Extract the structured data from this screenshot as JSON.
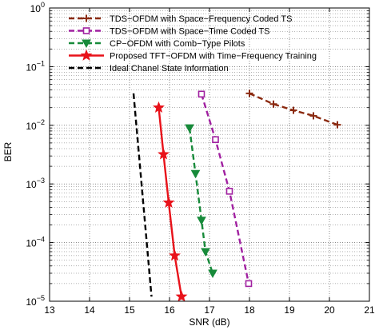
{
  "chart_data": {
    "type": "line",
    "xlabel": "SNR (dB)",
    "ylabel": "BER",
    "xlim": [
      13,
      21
    ],
    "ylim": [
      1e-05,
      1
    ],
    "yscale": "log",
    "grid": true,
    "legend_position": "top-right",
    "x_ticks": [
      {
        "value": 13,
        "label": "13"
      },
      {
        "value": 14,
        "label": "14"
      },
      {
        "value": 15,
        "label": "15"
      },
      {
        "value": 16,
        "label": "16"
      },
      {
        "value": 17,
        "label": "17"
      },
      {
        "value": 18,
        "label": "18"
      },
      {
        "value": 19,
        "label": "19"
      },
      {
        "value": 20,
        "label": "20"
      },
      {
        "value": 21,
        "label": "21"
      }
    ],
    "y_ticks": [
      {
        "value": 1,
        "base": "10",
        "exp": "0"
      },
      {
        "value": 0.1,
        "base": "10",
        "exp": "−1"
      },
      {
        "value": 0.01,
        "base": "10",
        "exp": "−2"
      },
      {
        "value": 0.001,
        "base": "10",
        "exp": "−3"
      },
      {
        "value": 0.0001,
        "base": "10",
        "exp": "−4"
      },
      {
        "value": 1e-05,
        "base": "10",
        "exp": "−5"
      }
    ],
    "series": [
      {
        "name": "TDS−OFDM with Space−Frequency Coded TS",
        "color": "#8b2a10",
        "dash": "7,4",
        "marker": "plus",
        "x": [
          18.0,
          18.6,
          19.1,
          19.6,
          20.2
        ],
        "y": [
          0.035,
          0.023,
          0.018,
          0.0145,
          0.0102
        ]
      },
      {
        "name": "TDS−OFDM with Space−Time Coded TS",
        "color": "#a020a0",
        "dash": "7,4",
        "marker": "square",
        "x": [
          16.8,
          17.15,
          17.5,
          17.98
        ],
        "y": [
          0.034,
          0.0057,
          0.00075,
          2e-05
        ]
      },
      {
        "name": "CP−OFDM with Comb−Type Pilots",
        "color": "#178a3a",
        "dash": "7,4",
        "marker": "triangle-down",
        "x": [
          16.5,
          16.65,
          16.8,
          16.9,
          17.08
        ],
        "y": [
          0.009,
          0.0015,
          0.00024,
          7e-05,
          3e-05
        ]
      },
      {
        "name": "Proposed TFT−OFDM with Time−Frequency Training",
        "color": "#e8121a",
        "dash": "",
        "marker": "star",
        "x": [
          15.73,
          15.85,
          15.98,
          16.13,
          16.3
        ],
        "y": [
          0.02,
          0.0032,
          0.00048,
          6e-05,
          1.2e-05
        ]
      },
      {
        "name": "Ideal Chanel State Information",
        "color": "#000000",
        "dash": "7,4",
        "marker": "none",
        "x": [
          15.1,
          15.55
        ],
        "y": [
          0.035,
          1.2e-05
        ]
      }
    ]
  }
}
